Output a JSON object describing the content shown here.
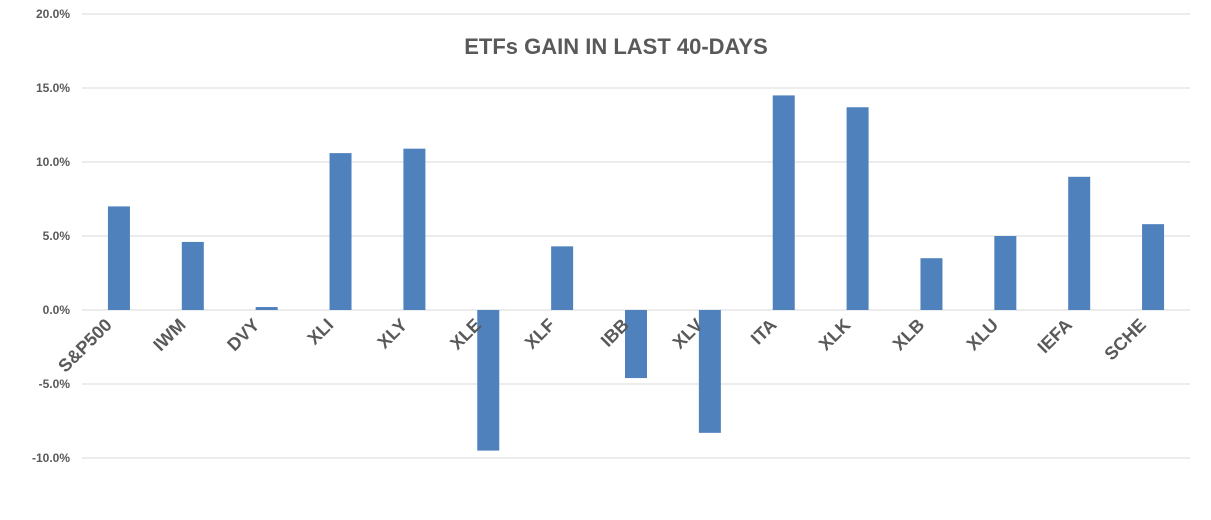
{
  "chart_data": {
    "type": "bar",
    "title": "ETFs GAIN IN LAST 40-DAYS",
    "categories": [
      "S&P500",
      "IWM",
      "DVY",
      "XLI",
      "XLY",
      "XLE",
      "XLF",
      "IBB",
      "XLV",
      "ITA",
      "XLK",
      "XLB",
      "XLU",
      "IEFA",
      "SCHE"
    ],
    "values": [
      7.0,
      4.6,
      0.2,
      10.6,
      10.9,
      -9.5,
      4.3,
      -4.6,
      -8.3,
      14.5,
      13.7,
      3.5,
      5.0,
      9.0,
      5.8
    ],
    "ylim": [
      -10,
      20
    ],
    "yticks": [
      20,
      15,
      10,
      5,
      0,
      -5,
      -10
    ],
    "ytick_labels": [
      "20.0%",
      "15.0%",
      "10.0%",
      "5.0%",
      "0.0%",
      "-5.0%",
      "-10.0%"
    ],
    "grid": true,
    "colors": {
      "bar": "#4f81bd",
      "grid": "#d9d9d9",
      "text": "#595959"
    }
  }
}
